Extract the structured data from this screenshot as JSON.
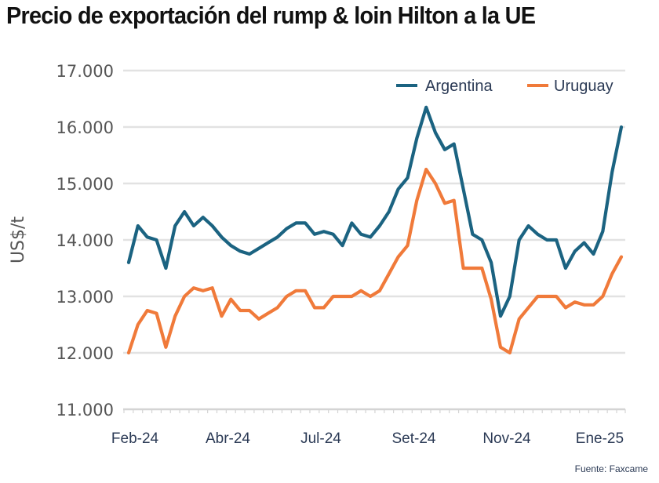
{
  "chart_data": {
    "type": "line",
    "title": "Precio de exportación del rump & loin Hilton a la UE",
    "xlabel": "",
    "ylabel": "US$/t",
    "ylim": [
      11000,
      17000
    ],
    "yticks": [
      17000,
      16000,
      15000,
      14000,
      13000,
      12000,
      11000
    ],
    "ytick_labels": [
      "17.000",
      "16.000",
      "15.000",
      "14.000",
      "13.000",
      "12.000",
      "11.000"
    ],
    "x_tick_labels": [
      {
        "label": "Feb-24",
        "index": 0
      },
      {
        "label": "Abr-24",
        "index": 10
      },
      {
        "label": "Jul-24",
        "index": 20
      },
      {
        "label": "Set-24",
        "index": 30
      },
      {
        "label": "Nov-24",
        "index": 40
      },
      {
        "label": "Ene-25",
        "index": 50
      }
    ],
    "x_frequency": "weekly",
    "grid": true,
    "legend_position": "top-right",
    "series": [
      {
        "name": "Argentina",
        "color": "#1b6381",
        "values": [
          13600,
          14250,
          14050,
          14000,
          13500,
          14250,
          14500,
          14250,
          14400,
          14250,
          14050,
          13900,
          13800,
          13750,
          13850,
          13950,
          14050,
          14200,
          14300,
          14300,
          14100,
          14150,
          14100,
          13900,
          14300,
          14100,
          14050,
          14250,
          14500,
          14900,
          15100,
          15800,
          16350,
          15900,
          15600,
          15700,
          14900,
          14100,
          14000,
          13600,
          12650,
          13000,
          14000,
          14250,
          14100,
          14000,
          14000,
          13500,
          13800,
          13950,
          13750,
          14150,
          15200,
          16000
        ]
      },
      {
        "name": "Uruguay",
        "color": "#f07a3a",
        "values": [
          12000,
          12500,
          12750,
          12700,
          12100,
          12650,
          13000,
          13150,
          13100,
          13150,
          12650,
          12950,
          12750,
          12750,
          12600,
          12700,
          12800,
          13000,
          13100,
          13100,
          12800,
          12800,
          13000,
          13000,
          13000,
          13100,
          13000,
          13100,
          13400,
          13700,
          13900,
          14700,
          15250,
          15000,
          14650,
          14700,
          13500,
          13500,
          13500,
          12950,
          12100,
          12000,
          12600,
          12800,
          13000,
          13000,
          13000,
          12800,
          12900,
          12850,
          12850,
          13000,
          13400,
          13700
        ]
      }
    ],
    "source": "Fuente: Faxcame"
  }
}
